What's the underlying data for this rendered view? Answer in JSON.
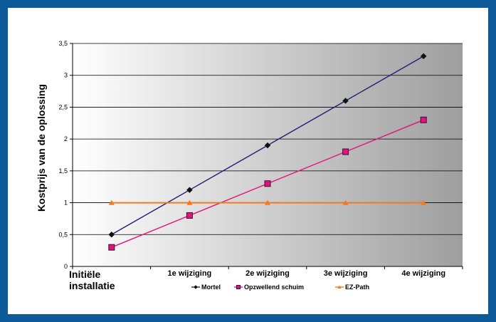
{
  "chart_data": {
    "type": "line",
    "categories": [
      "Initiële installatie",
      "1e wijziging",
      "2e wijziging",
      "3e wijziging",
      "4e wijziging"
    ],
    "category_lines": [
      [
        "Initiële",
        "installatie"
      ],
      [
        "1e wijziging"
      ],
      [
        "2e wijziging"
      ],
      [
        "3e wijziging"
      ],
      [
        "4e wijziging"
      ]
    ],
    "series": [
      {
        "name": "Mortel",
        "values": [
          0.5,
          1.2,
          1.9,
          2.6,
          3.3
        ],
        "color": "#1f1f7a",
        "marker": "diamond"
      },
      {
        "name": "Opzwellend schuim",
        "values": [
          0.3,
          0.8,
          1.3,
          1.8,
          2.3
        ],
        "color": "#e0147c",
        "marker": "square"
      },
      {
        "name": "EZ-Path",
        "values": [
          1.0,
          1.0,
          1.0,
          1.0,
          1.0
        ],
        "color": "#f07a1e",
        "marker": "triangle"
      }
    ],
    "ylabel": "Kostprijs van de oplossing",
    "ylim": [
      0,
      3.5
    ],
    "yticks": [
      "0",
      "0,5",
      "1",
      "1,5",
      "2",
      "2,5",
      "3",
      "3,5"
    ],
    "grid": true,
    "legend_position": "bottom",
    "background": "gradient white to grey"
  }
}
